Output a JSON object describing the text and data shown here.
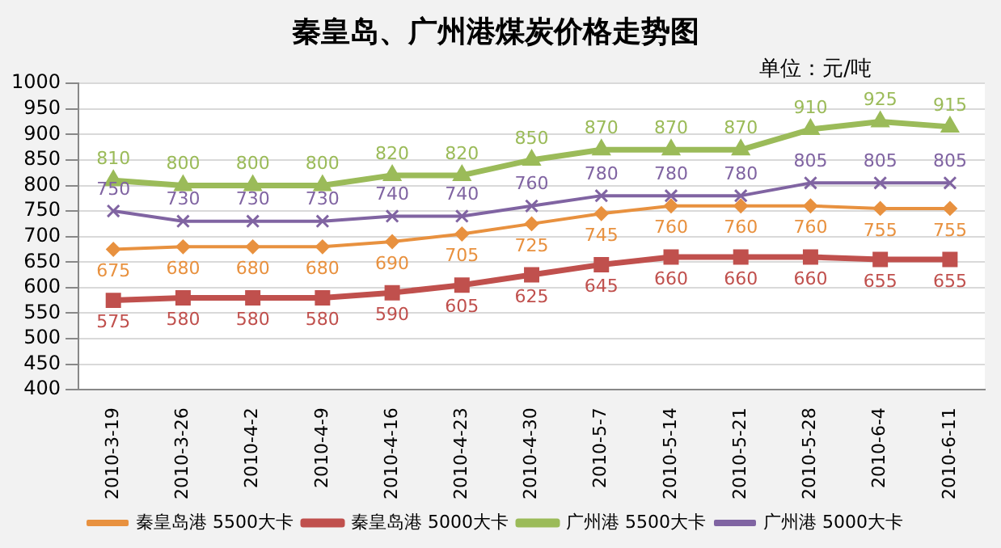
{
  "chart_data": {
    "type": "line",
    "title": "秦皇岛、广州港煤炭价格走势图",
    "annotations": [
      "单位：元/吨"
    ],
    "categories": [
      "2010-3-19",
      "2010-3-26",
      "2010-4-2",
      "2010-4-9",
      "2010-4-16",
      "2010-4-23",
      "2010-4-30",
      "2010-5-7",
      "2010-5-14",
      "2010-5-21",
      "2010-5-28",
      "2010-6-4",
      "2010-6-11"
    ],
    "series": [
      {
        "name": "秦皇岛港 5500大卡",
        "color": "#e8913f",
        "marker": "diamond",
        "values": [
          675,
          680,
          680,
          680,
          690,
          705,
          725,
          745,
          760,
          760,
          760,
          755,
          755
        ]
      },
      {
        "name": "秦皇岛港 5000大卡",
        "color": "#c0504d",
        "marker": "square",
        "values": [
          575,
          580,
          580,
          580,
          590,
          605,
          625,
          645,
          660,
          660,
          660,
          655,
          655
        ]
      },
      {
        "name": "广州港 5500大卡",
        "color": "#9bbb59",
        "marker": "triangle",
        "values": [
          810,
          800,
          800,
          800,
          820,
          820,
          850,
          870,
          870,
          870,
          910,
          925,
          915
        ]
      },
      {
        "name": "广州港 5000大卡",
        "color": "#8064a2",
        "marker": "cross",
        "values": [
          750,
          730,
          730,
          730,
          740,
          740,
          760,
          780,
          780,
          780,
          805,
          805,
          805
        ]
      }
    ],
    "ylim": [
      400,
      1000
    ],
    "yticks": [
      400,
      450,
      500,
      550,
      600,
      650,
      700,
      750,
      800,
      850,
      900,
      950,
      1000
    ],
    "grid": "y",
    "legend": "bottom",
    "data_labels": true
  }
}
